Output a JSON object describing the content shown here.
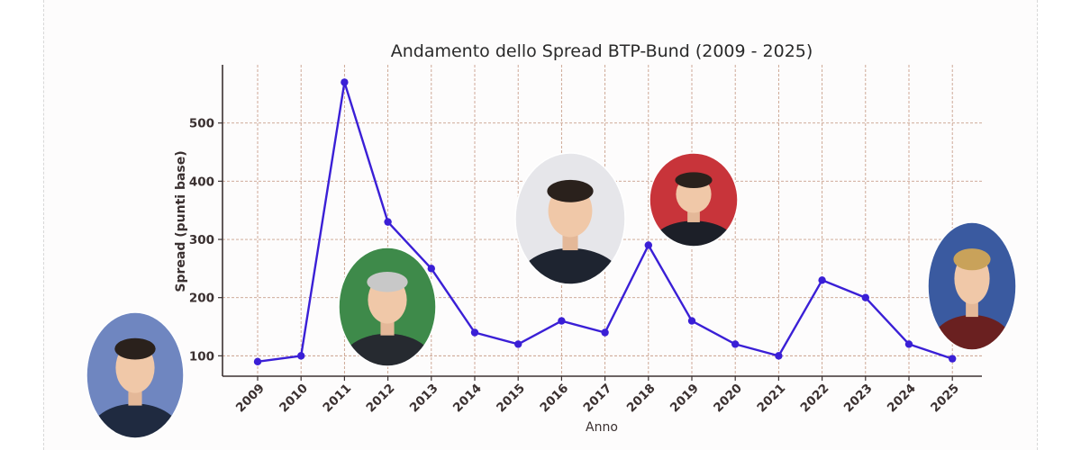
{
  "chart_data": {
    "type": "line",
    "title": "Andamento dello Spread BTP-Bund (2009 - 2025)",
    "xlabel": "Anno",
    "ylabel": "Spread (punti base)",
    "categories": [
      "2009",
      "2010",
      "2011",
      "2012",
      "2013",
      "2014",
      "2015",
      "2016",
      "2017",
      "2018",
      "2019",
      "2020",
      "2021",
      "2022",
      "2023",
      "2024",
      "2025"
    ],
    "series": [
      {
        "values": [
          90,
          100,
          570,
          330,
          250,
          140,
          120,
          160,
          140,
          290,
          160,
          120,
          100,
          230,
          200,
          120,
          95
        ]
      }
    ],
    "yticks": [
      "100",
      "200",
      "300",
      "400",
      "500"
    ],
    "ylim": [
      65,
      600
    ],
    "grid": true,
    "line_color": "#3a1fd6",
    "portraits": [
      {
        "name": "portrait-berlusconi",
        "year": "2009",
        "suit": "#1f2a40",
        "bg": "#6f86c0"
      },
      {
        "name": "portrait-monti",
        "year": "2012",
        "suit": "#262a30",
        "bg": "#3e8a4a"
      },
      {
        "name": "portrait-renzi",
        "year": "2016",
        "suit": "#1e2430",
        "bg": "#e6e6ea"
      },
      {
        "name": "portrait-conte",
        "year": "2019",
        "suit": "#1c1f28",
        "bg": "#c8343a"
      },
      {
        "name": "portrait-meloni",
        "year": "2025",
        "suit": "#6a2020",
        "bg": "#3a5aa0"
      }
    ]
  }
}
